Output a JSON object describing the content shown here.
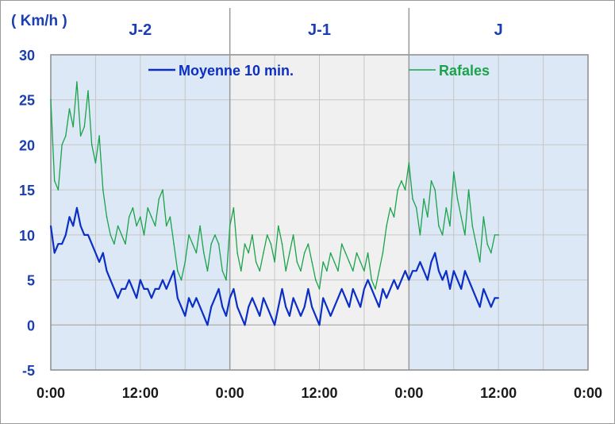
{
  "chart_data": {
    "type": "line",
    "unit_label": "( Km/h )",
    "periods": [
      "J-2",
      "J-1",
      "J"
    ],
    "x_tick_labels": [
      "0:00",
      "12:00",
      "0:00",
      "12:00",
      "0:00",
      "12:00",
      "0:00"
    ],
    "x_unit": "hours",
    "x_range": [
      0,
      72
    ],
    "ylim": [
      -5,
      30
    ],
    "y_ticks": [
      -5,
      0,
      5,
      10,
      15,
      20,
      25,
      30
    ],
    "grid": true,
    "legend": [
      "Moyenne 10 min.",
      "Rafales"
    ],
    "colors": {
      "moyenne": "#0b2fc4",
      "rafales": "#1aa34a",
      "shade_blue": "#dce8f5",
      "shade_grey": "#f0f0f0",
      "text": "#1b3fb0"
    },
    "series": [
      {
        "name": "Moyenne 10 min.",
        "x": [
          0,
          0.5,
          1,
          1.5,
          2,
          2.5,
          3,
          3.5,
          4,
          4.5,
          5,
          5.5,
          6,
          6.5,
          7,
          7.5,
          8,
          8.5,
          9,
          9.5,
          10,
          10.5,
          11,
          11.5,
          12,
          12.5,
          13,
          13.5,
          14,
          14.5,
          15,
          15.5,
          16,
          16.5,
          17,
          17.5,
          18,
          18.5,
          19,
          19.5,
          20,
          20.5,
          21,
          21.5,
          22,
          22.5,
          23,
          23.5,
          24,
          24.5,
          25,
          25.5,
          26,
          26.5,
          27,
          27.5,
          28,
          28.5,
          29,
          29.5,
          30,
          30.5,
          31,
          31.5,
          32,
          32.5,
          33,
          33.5,
          34,
          34.5,
          35,
          35.5,
          36,
          36.5,
          37,
          37.5,
          38,
          38.5,
          39,
          39.5,
          40,
          40.5,
          41,
          41.5,
          42,
          42.5,
          43,
          43.5,
          44,
          44.5,
          45,
          45.5,
          46,
          46.5,
          47,
          47.5,
          48,
          48.5,
          49,
          49.5,
          50,
          50.5,
          51,
          51.5,
          52,
          52.5,
          53,
          53.5,
          54,
          54.5,
          55,
          55.5,
          56,
          56.5,
          57,
          57.5,
          58,
          58.5,
          59,
          59.5,
          60
        ],
        "values": [
          11,
          8,
          9,
          9,
          10,
          12,
          11,
          13,
          11,
          10,
          10,
          9,
          8,
          7,
          8,
          6,
          5,
          4,
          3,
          4,
          4,
          5,
          4,
          3,
          5,
          4,
          4,
          3,
          4,
          4,
          5,
          4,
          5,
          6,
          3,
          2,
          1,
          3,
          2,
          3,
          2,
          1,
          0,
          2,
          3,
          4,
          2,
          1,
          3,
          4,
          2,
          1,
          0,
          2,
          3,
          2,
          1,
          3,
          2,
          1,
          0,
          2,
          4,
          2,
          1,
          3,
          2,
          1,
          2,
          4,
          2,
          1,
          0,
          3,
          2,
          1,
          2,
          3,
          4,
          3,
          2,
          4,
          3,
          2,
          4,
          5,
          4,
          3,
          2,
          4,
          3,
          4,
          5,
          4,
          5,
          6,
          5,
          6,
          6,
          7,
          6,
          5,
          7,
          8,
          6,
          5,
          6,
          4,
          6,
          5,
          4,
          6,
          5,
          4,
          3,
          2,
          4,
          3,
          2,
          3,
          3
        ]
      },
      {
        "name": "Rafales",
        "x": [
          0,
          0.5,
          1,
          1.5,
          2,
          2.5,
          3,
          3.5,
          4,
          4.5,
          5,
          5.5,
          6,
          6.5,
          7,
          7.5,
          8,
          8.5,
          9,
          9.5,
          10,
          10.5,
          11,
          11.5,
          12,
          12.5,
          13,
          13.5,
          14,
          14.5,
          15,
          15.5,
          16,
          16.5,
          17,
          17.5,
          18,
          18.5,
          19,
          19.5,
          20,
          20.5,
          21,
          21.5,
          22,
          22.5,
          23,
          23.5,
          24,
          24.5,
          25,
          25.5,
          26,
          26.5,
          27,
          27.5,
          28,
          28.5,
          29,
          29.5,
          30,
          30.5,
          31,
          31.5,
          32,
          32.5,
          33,
          33.5,
          34,
          34.5,
          35,
          35.5,
          36,
          36.5,
          37,
          37.5,
          38,
          38.5,
          39,
          39.5,
          40,
          40.5,
          41,
          41.5,
          42,
          42.5,
          43,
          43.5,
          44,
          44.5,
          45,
          45.5,
          46,
          46.5,
          47,
          47.5,
          48,
          48.5,
          49,
          49.5,
          50,
          50.5,
          51,
          51.5,
          52,
          52.5,
          53,
          53.5,
          54,
          54.5,
          55,
          55.5,
          56,
          56.5,
          57,
          57.5,
          58,
          58.5,
          59,
          59.5,
          60
        ],
        "values": [
          25,
          16,
          15,
          20,
          21,
          24,
          22,
          27,
          21,
          22,
          26,
          20,
          18,
          21,
          15,
          12,
          10,
          9,
          11,
          10,
          9,
          12,
          13,
          11,
          12,
          10,
          13,
          12,
          11,
          14,
          15,
          11,
          12,
          9,
          6,
          5,
          7,
          10,
          9,
          8,
          11,
          8,
          6,
          9,
          10,
          9,
          6,
          5,
          11,
          13,
          8,
          6,
          9,
          8,
          10,
          7,
          6,
          8,
          10,
          9,
          7,
          11,
          9,
          6,
          8,
          10,
          7,
          6,
          8,
          9,
          7,
          5,
          4,
          7,
          6,
          8,
          7,
          6,
          9,
          8,
          7,
          6,
          8,
          7,
          6,
          8,
          5,
          4,
          6,
          8,
          11,
          13,
          12,
          15,
          16,
          15,
          18,
          14,
          13,
          10,
          14,
          12,
          16,
          15,
          11,
          10,
          13,
          11,
          17,
          14,
          12,
          10,
          15,
          11,
          9,
          7,
          12,
          9,
          8,
          10,
          10
        ]
      }
    ]
  }
}
